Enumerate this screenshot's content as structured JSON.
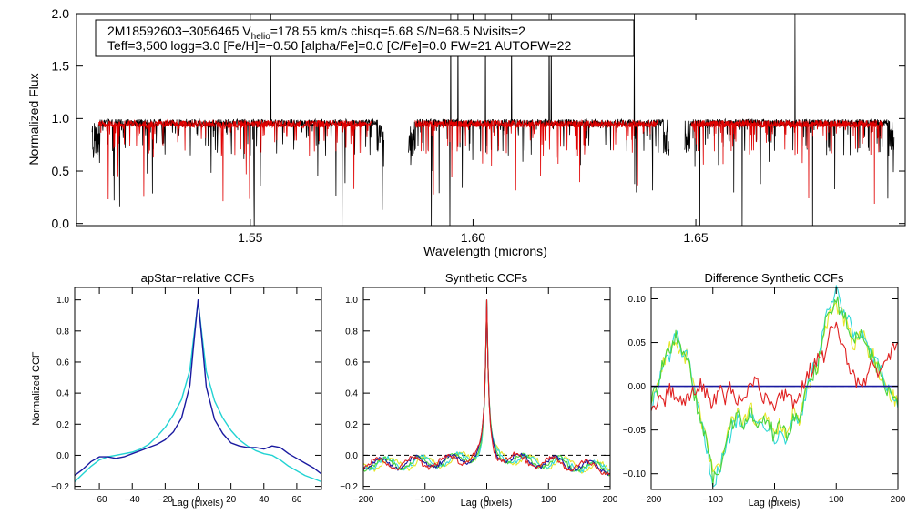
{
  "chart_data": [
    {
      "type": "line",
      "title_line1_prefix": "2M18592603−3056465  V",
      "title_line1_sub": "helio",
      "title_line1_suffix": "=178.55 km/s  chisq=5.68  S/N=68.5  Nvisits=2",
      "title_line2": "Teff=3,500 logg=3.0 [Fe/H]=−0.50 [alpha/Fe]=0.0 [C/Fe]=0.0 FW=21 AUTOFW=22",
      "xlabel": "Wavelength (microns)",
      "ylabel": "Normalized Flux",
      "xlim": [
        1.511,
        1.697
      ],
      "ylim": [
        -0.02,
        2.0
      ],
      "xticks": [
        "1.55",
        "1.60",
        "1.65"
      ],
      "xtick_values": [
        1.55,
        1.6,
        1.65
      ],
      "yticks": [
        "0.0",
        "0.5",
        "1.0",
        "1.5",
        "2.0"
      ],
      "ytick_values": [
        0.0,
        0.5,
        1.0,
        1.5,
        2.0
      ],
      "chips": [
        [
          1.5145,
          1.58
        ],
        [
          1.5855,
          1.644
        ],
        [
          1.6475,
          1.6945
        ]
      ],
      "series": [
        {
          "name": "observed spectrum",
          "color": "#000000",
          "continuum": 0.96
        },
        {
          "name": "best-fit model",
          "color": "#e00000",
          "continuum": 0.95
        }
      ]
    },
    {
      "type": "line",
      "title": "apStar−relative CCFs",
      "xlabel": "Lag (pixels)",
      "ylabel": "Normalized CCF",
      "xlim": [
        -75,
        75
      ],
      "ylim": [
        -0.22,
        1.08
      ],
      "xticks": [
        "−60",
        "−40",
        "−20",
        "0",
        "20",
        "40",
        "60"
      ],
      "xtick_values": [
        -60,
        -40,
        -20,
        0,
        20,
        40,
        60
      ],
      "yticks": [
        "−0.2",
        "0.0",
        "0.2",
        "0.4",
        "0.6",
        "0.8",
        "1.0"
      ],
      "ytick_values": [
        -0.2,
        0.0,
        0.2,
        0.4,
        0.6,
        0.8,
        1.0
      ],
      "series": [
        {
          "name": "visit CCF (cyan)",
          "color": "#22d3d3",
          "x": [
            -75,
            -70,
            -65,
            -60,
            -55,
            -50,
            -45,
            -40,
            -35,
            -30,
            -25,
            -20,
            -15,
            -10,
            -5,
            -3,
            0,
            3,
            5,
            10,
            15,
            20,
            25,
            30,
            35,
            40,
            45,
            50,
            55,
            60,
            65,
            70,
            75
          ],
          "y": [
            -0.17,
            -0.12,
            -0.07,
            -0.03,
            -0.01,
            0.0,
            0.01,
            0.02,
            0.04,
            0.07,
            0.12,
            0.18,
            0.26,
            0.36,
            0.55,
            0.73,
            0.99,
            0.72,
            0.54,
            0.35,
            0.24,
            0.16,
            0.1,
            0.06,
            0.03,
            0.01,
            0.0,
            -0.03,
            -0.07,
            -0.1,
            -0.13,
            -0.15,
            -0.17
          ]
        },
        {
          "name": "visit CCF (navy)",
          "color": "#1a1aa0",
          "x": [
            -75,
            -70,
            -65,
            -60,
            -55,
            -50,
            -45,
            -40,
            -35,
            -30,
            -25,
            -20,
            -15,
            -10,
            -5,
            -3,
            0,
            3,
            5,
            10,
            15,
            20,
            25,
            30,
            35,
            40,
            45,
            50,
            55,
            60,
            65,
            70,
            75
          ],
          "y": [
            -0.13,
            -0.09,
            -0.04,
            -0.01,
            -0.01,
            -0.02,
            -0.01,
            0.01,
            0.03,
            0.05,
            0.07,
            0.1,
            0.15,
            0.24,
            0.45,
            0.68,
            1.0,
            0.67,
            0.44,
            0.23,
            0.14,
            0.08,
            0.06,
            0.05,
            0.05,
            0.04,
            0.06,
            0.05,
            0.01,
            -0.02,
            -0.05,
            -0.08,
            -0.12
          ]
        }
      ]
    },
    {
      "type": "line",
      "title": "Synthetic CCFs",
      "xlabel": "Lag (pixels)",
      "xlim": [
        -200,
        200
      ],
      "ylim": [
        -0.22,
        1.08
      ],
      "xticks": [
        "−200",
        "−100",
        "0",
        "100",
        "200"
      ],
      "xtick_values": [
        -200,
        -100,
        0,
        100,
        200
      ],
      "yticks": [
        "−0.2",
        "0.0",
        "0.2",
        "0.4",
        "0.6",
        "0.8",
        "1.0"
      ],
      "ytick_values": [
        -0.2,
        0.0,
        0.2,
        0.4,
        0.6,
        0.8,
        1.0
      ],
      "reference_line": 0.0,
      "series": [
        {
          "name": "synthetic CCF (yellow)",
          "color": "#e6e62a"
        },
        {
          "name": "synthetic CCF (cyan)",
          "color": "#30d8d8"
        },
        {
          "name": "synthetic CCF (green)",
          "color": "#4cd43c"
        },
        {
          "name": "synthetic CCF (blue)",
          "color": "#1a1aa0"
        },
        {
          "name": "synthetic CCF (red)",
          "color": "#e02020"
        }
      ]
    },
    {
      "type": "line",
      "title": "Difference Synthetic CCFs",
      "xlabel": "Lag (pixels)",
      "xlim": [
        -200,
        200
      ],
      "ylim": [
        -0.118,
        0.113
      ],
      "xticks": [
        "−200",
        "−100",
        "0",
        "100",
        "200"
      ],
      "xtick_values": [
        -200,
        -100,
        0,
        100,
        200
      ],
      "yticks": [
        "−0.10",
        "−0.05",
        "0.00",
        "0.05",
        "0.10"
      ],
      "ytick_values": [
        -0.1,
        -0.05,
        0.0,
        0.05,
        0.1
      ],
      "reference_line": 0.0,
      "series": [
        {
          "name": "difference (yellow)",
          "color": "#e6e62a",
          "x": [
            -200,
            -190,
            -180,
            -170,
            -160,
            -150,
            -140,
            -130,
            -120,
            -110,
            -100,
            -90,
            -80,
            -70,
            -60,
            -50,
            -40,
            -30,
            -20,
            -10,
            0,
            10,
            20,
            30,
            40,
            50,
            60,
            70,
            80,
            90,
            100,
            110,
            120,
            130,
            140,
            150,
            160,
            170,
            180,
            190,
            200
          ],
          "y": [
            -0.015,
            0.0,
            0.03,
            0.045,
            0.05,
            0.03,
            0.04,
            -0.005,
            -0.035,
            -0.06,
            -0.1,
            -0.09,
            -0.07,
            -0.04,
            -0.03,
            -0.045,
            -0.02,
            -0.05,
            -0.035,
            -0.04,
            -0.055,
            -0.04,
            -0.06,
            -0.03,
            -0.045,
            -0.005,
            0.01,
            0.02,
            0.06,
            0.085,
            0.095,
            0.08,
            0.065,
            0.045,
            0.07,
            0.04,
            0.035,
            0.01,
            0.0,
            -0.01,
            -0.02
          ]
        },
        {
          "name": "difference (cyan)",
          "color": "#30d8d8",
          "x": [
            -200,
            -190,
            -180,
            -170,
            -160,
            -150,
            -140,
            -130,
            -120,
            -110,
            -100,
            -90,
            -80,
            -70,
            -60,
            -50,
            -40,
            -30,
            -20,
            -10,
            0,
            10,
            20,
            30,
            40,
            50,
            60,
            70,
            80,
            90,
            100,
            110,
            120,
            130,
            140,
            150,
            160,
            170,
            180,
            190,
            200
          ],
          "y": [
            -0.02,
            -0.005,
            0.025,
            0.035,
            0.06,
            0.04,
            0.03,
            -0.01,
            -0.04,
            -0.07,
            -0.112,
            -0.095,
            -0.075,
            -0.05,
            -0.035,
            -0.04,
            -0.03,
            -0.045,
            -0.04,
            -0.045,
            -0.06,
            -0.045,
            -0.065,
            -0.035,
            -0.04,
            -0.01,
            0.015,
            0.03,
            0.07,
            0.09,
            0.108,
            0.085,
            0.075,
            0.055,
            0.06,
            0.045,
            0.03,
            0.02,
            0.0,
            -0.005,
            -0.025
          ]
        },
        {
          "name": "difference (green)",
          "color": "#4cd43c",
          "x": [
            -200,
            -190,
            -180,
            -170,
            -160,
            -150,
            -140,
            -130,
            -120,
            -110,
            -100,
            -90,
            -80,
            -70,
            -60,
            -50,
            -40,
            -30,
            -20,
            -10,
            0,
            10,
            20,
            30,
            40,
            50,
            60,
            70,
            80,
            90,
            100,
            110,
            120,
            130,
            140,
            150,
            160,
            170,
            180,
            190,
            200
          ],
          "y": [
            -0.018,
            -0.002,
            0.028,
            0.04,
            0.055,
            0.035,
            0.035,
            -0.008,
            -0.038,
            -0.065,
            -0.105,
            -0.092,
            -0.072,
            -0.045,
            -0.032,
            -0.042,
            -0.025,
            -0.048,
            -0.038,
            -0.042,
            -0.058,
            -0.042,
            -0.062,
            -0.032,
            -0.042,
            -0.008,
            0.012,
            0.025,
            0.065,
            0.088,
            0.1,
            0.082,
            0.07,
            0.05,
            0.065,
            0.042,
            0.032,
            0.015,
            0.0,
            -0.008,
            -0.022
          ]
        },
        {
          "name": "difference (blue)",
          "color": "#1a1aa0",
          "x": [
            -200,
            200
          ],
          "y": [
            0.0,
            0.0
          ]
        },
        {
          "name": "difference (red)",
          "color": "#e02020",
          "x": [
            -200,
            -190,
            -180,
            -170,
            -160,
            -150,
            -140,
            -130,
            -120,
            -110,
            -100,
            -90,
            -80,
            -70,
            -60,
            -50,
            -40,
            -30,
            -20,
            -10,
            0,
            10,
            20,
            30,
            40,
            50,
            60,
            70,
            80,
            90,
            100,
            110,
            120,
            130,
            140,
            150,
            160,
            170,
            180,
            190,
            200
          ],
          "y": [
            -0.025,
            -0.018,
            -0.02,
            -0.005,
            -0.012,
            -0.02,
            -0.01,
            -0.005,
            0.0,
            -0.008,
            -0.02,
            -0.005,
            -0.015,
            0.0,
            -0.02,
            -0.008,
            0.0,
            0.005,
            -0.01,
            -0.015,
            -0.02,
            -0.012,
            -0.005,
            -0.018,
            -0.01,
            0.01,
            0.02,
            0.03,
            0.035,
            0.06,
            0.065,
            0.05,
            0.02,
            0.01,
            -0.005,
            0.01,
            0.03,
            0.015,
            0.025,
            0.04,
            0.05
          ]
        }
      ]
    }
  ]
}
